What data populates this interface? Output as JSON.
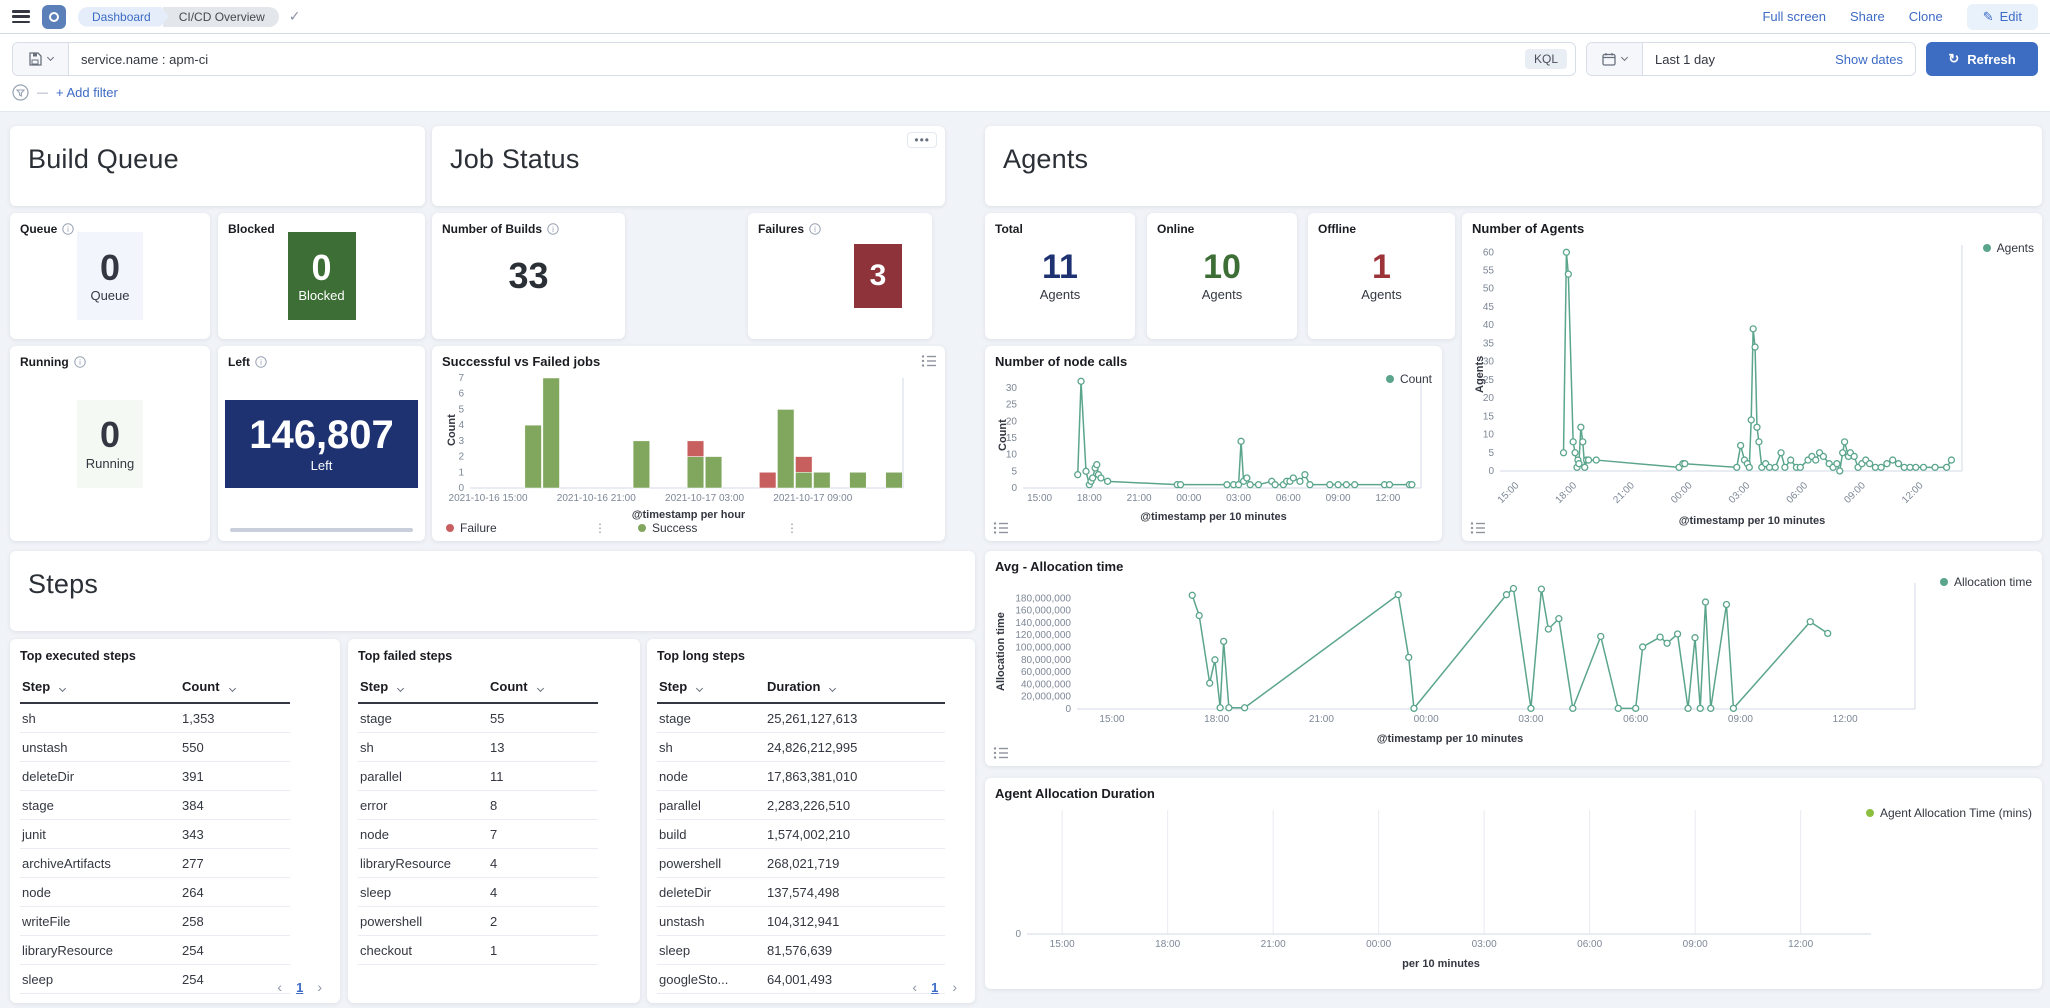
{
  "header": {
    "breadcrumbs": [
      {
        "label": "Dashboard"
      },
      {
        "label": "CI/CD Overview"
      }
    ],
    "actions": {
      "full_screen": "Full screen",
      "share": "Share",
      "clone": "Clone",
      "edit": "Edit"
    }
  },
  "query_bar": {
    "query": "service.name : apm-ci",
    "language_badge": "KQL",
    "date_value": "Last 1 day",
    "show_dates_label": "Show dates",
    "refresh_label": "Refresh"
  },
  "filter_bar": {
    "add_filter_label": "+ Add filter"
  },
  "build_queue": {
    "title": "Build Queue",
    "queue": {
      "label": "Queue",
      "value": "0",
      "sub": "Queue",
      "box_bg": "#F2F5FB",
      "text": "#343741"
    },
    "blocked": {
      "label": "Blocked",
      "value": "0",
      "sub": "Blocked",
      "box_bg": "#3C6E35",
      "text": "#FFFFFF"
    },
    "running": {
      "label": "Running",
      "value": "0",
      "sub": "Running",
      "box_bg": "#F5F9F3",
      "text": "#343741"
    },
    "left": {
      "label": "Left",
      "value": "146,807",
      "sub": "Left",
      "box_bg": "#1E3272",
      "text": "#FFFFFF"
    }
  },
  "job_status": {
    "title": "Job Status",
    "builds": {
      "label": "Number of Builds",
      "value": "33"
    },
    "failures": {
      "label": "Failures",
      "value": "3",
      "box_bg": "#8E333A",
      "text": "#FFFFFF"
    }
  },
  "agents": {
    "title": "Agents",
    "total": {
      "label": "Total",
      "value": "11",
      "sub": "Agents",
      "color": "#1E3272"
    },
    "online": {
      "label": "Online",
      "value": "10",
      "sub": "Agents",
      "color": "#3C6E35"
    },
    "offline": {
      "label": "Offline",
      "value": "1",
      "sub": "Agents",
      "color": "#9B3339"
    }
  },
  "steps": {
    "title": "Steps",
    "pagination": {
      "prev": "‹",
      "page": "1",
      "next": "›"
    },
    "tables": [
      {
        "title": "Top executed steps",
        "columns": [
          "Step",
          "Count"
        ],
        "rows": [
          [
            "sh",
            "1,353"
          ],
          [
            "unstash",
            "550"
          ],
          [
            "deleteDir",
            "391"
          ],
          [
            "stage",
            "384"
          ],
          [
            "junit",
            "343"
          ],
          [
            "archiveArtifacts",
            "277"
          ],
          [
            "node",
            "264"
          ],
          [
            "writeFile",
            "258"
          ],
          [
            "libraryResource",
            "254"
          ],
          [
            "sleep",
            "254"
          ]
        ],
        "pagination": true
      },
      {
        "title": "Top failed steps",
        "columns": [
          "Step",
          "Count"
        ],
        "rows": [
          [
            "stage",
            "55"
          ],
          [
            "sh",
            "13"
          ],
          [
            "parallel",
            "11"
          ],
          [
            "error",
            "8"
          ],
          [
            "node",
            "7"
          ],
          [
            "libraryResource",
            "4"
          ],
          [
            "sleep",
            "4"
          ],
          [
            "powershell",
            "2"
          ],
          [
            "checkout",
            "1"
          ]
        ],
        "pagination": false
      },
      {
        "title": "Top long steps",
        "columns": [
          "Step",
          "Duration"
        ],
        "rows": [
          [
            "stage",
            "25,261,127,613"
          ],
          [
            "sh",
            "24,826,212,995"
          ],
          [
            "node",
            "17,863,381,010"
          ],
          [
            "parallel",
            "2,283,226,510"
          ],
          [
            "build",
            "1,574,002,210"
          ],
          [
            "powershell",
            "268,021,719"
          ],
          [
            "deleteDir",
            "137,574,498"
          ],
          [
            "unstash",
            "104,312,941"
          ],
          [
            "sleep",
            "81,576,639"
          ],
          [
            "googleSto...",
            "64,001,493"
          ]
        ],
        "pagination": true
      }
    ]
  },
  "chart_data": [
    {
      "id": "jobs",
      "type": "bar",
      "title": "Successful vs Failed jobs",
      "ylabel": "Count",
      "xlabel": "@timestamp per hour",
      "ylim": [
        0,
        7
      ],
      "yticks": [
        0,
        1,
        2,
        3,
        4,
        5,
        6,
        7
      ],
      "xlim": [
        0,
        24
      ],
      "xticks": [
        {
          "h": 1,
          "label": "2021-10-16 15:00"
        },
        {
          "h": 7,
          "label": "2021-10-16 21:00"
        },
        {
          "h": 13,
          "label": "2021-10-17 03:00"
        },
        {
          "h": 19,
          "label": "2021-10-17 09:00"
        }
      ],
      "series": [
        {
          "name": "Failure",
          "color": "#C75F5E"
        },
        {
          "name": "Success",
          "color": "#81A65D"
        }
      ],
      "bars": [
        {
          "h": 3,
          "success": 4,
          "failure": 0
        },
        {
          "h": 4,
          "success": 7,
          "failure": 0
        },
        {
          "h": 9,
          "success": 3,
          "failure": 0
        },
        {
          "h": 12,
          "success": 2,
          "failure": 1
        },
        {
          "h": 13,
          "success": 2,
          "failure": 0
        },
        {
          "h": 16,
          "success": 0,
          "failure": 1
        },
        {
          "h": 17,
          "success": 5,
          "failure": 0
        },
        {
          "h": 18,
          "success": 1,
          "failure": 1
        },
        {
          "h": 19,
          "success": 1,
          "failure": 0
        },
        {
          "h": 21,
          "success": 1,
          "failure": 0
        },
        {
          "h": 23,
          "success": 1,
          "failure": 0
        }
      ],
      "legend_position": "bottom",
      "grid": false
    },
    {
      "id": "nodecalls",
      "type": "line",
      "title": "Number of node calls",
      "ylabel": "Count",
      "xlabel": "@timestamp per 10 minutes",
      "legend": "Count",
      "color": "#5BA58C",
      "ylim": [
        0,
        33
      ],
      "yticks": [
        0,
        5,
        10,
        15,
        20,
        25,
        30
      ],
      "xlim": [
        0,
        24
      ],
      "xticks": [
        {
          "h": 1,
          "label": "15:00"
        },
        {
          "h": 4,
          "label": "18:00"
        },
        {
          "h": 7,
          "label": "21:00"
        },
        {
          "h": 10,
          "label": "00:00"
        },
        {
          "h": 13,
          "label": "03:00"
        },
        {
          "h": 16,
          "label": "06:00"
        },
        {
          "h": 19,
          "label": "09:00"
        },
        {
          "h": 22,
          "label": "12:00"
        }
      ],
      "points": [
        [
          3.3,
          4
        ],
        [
          3.5,
          32
        ],
        [
          3.8,
          5
        ],
        [
          4.0,
          1
        ],
        [
          4.1,
          2
        ],
        [
          4.2,
          3
        ],
        [
          4.35,
          6
        ],
        [
          4.45,
          7
        ],
        [
          4.55,
          4
        ],
        [
          4.7,
          3
        ],
        [
          5.1,
          2
        ],
        [
          9.3,
          1
        ],
        [
          9.5,
          1
        ],
        [
          12.3,
          1
        ],
        [
          12.7,
          1
        ],
        [
          13.0,
          1
        ],
        [
          13.15,
          14
        ],
        [
          13.3,
          2
        ],
        [
          13.5,
          3
        ],
        [
          13.7,
          1
        ],
        [
          14.2,
          1
        ],
        [
          15.0,
          2
        ],
        [
          15.2,
          1
        ],
        [
          15.7,
          1
        ],
        [
          15.9,
          2
        ],
        [
          16.1,
          2
        ],
        [
          16.3,
          3
        ],
        [
          16.7,
          2
        ],
        [
          17.0,
          4
        ],
        [
          17.3,
          1
        ],
        [
          18.5,
          1
        ],
        [
          19.0,
          1
        ],
        [
          19.5,
          1
        ],
        [
          20.0,
          1
        ],
        [
          21.8,
          1
        ],
        [
          22.1,
          1
        ],
        [
          23.3,
          1
        ],
        [
          23.45,
          1
        ]
      ],
      "legend_position": "top-right",
      "grid": false
    },
    {
      "id": "agents",
      "type": "line",
      "title": "Number of Agents",
      "ylabel": "Agents",
      "xlabel": "@timestamp per 10 minutes",
      "legend": "Agents",
      "color": "#5BA58C",
      "ylim": [
        0,
        62
      ],
      "yticks": [
        0,
        5,
        10,
        15,
        20,
        25,
        30,
        35,
        40,
        45,
        50,
        55,
        60
      ],
      "xlim": [
        0,
        24
      ],
      "rotate_x_labels": true,
      "xticks": [
        {
          "h": 1,
          "label": "15:00"
        },
        {
          "h": 4,
          "label": "18:00"
        },
        {
          "h": 7,
          "label": "21:00"
        },
        {
          "h": 10,
          "label": "00:00"
        },
        {
          "h": 13,
          "label": "03:00"
        },
        {
          "h": 16,
          "label": "06:00"
        },
        {
          "h": 19,
          "label": "09:00"
        },
        {
          "h": 22,
          "label": "12:00"
        }
      ],
      "points": [
        [
          3.3,
          5
        ],
        [
          3.45,
          60
        ],
        [
          3.55,
          54
        ],
        [
          3.8,
          8
        ],
        [
          3.9,
          5
        ],
        [
          4.0,
          1
        ],
        [
          4.05,
          3
        ],
        [
          4.1,
          2
        ],
        [
          4.2,
          12
        ],
        [
          4.3,
          8
        ],
        [
          4.4,
          1
        ],
        [
          4.5,
          3
        ],
        [
          4.6,
          3
        ],
        [
          5.0,
          3
        ],
        [
          9.3,
          1
        ],
        [
          9.5,
          2
        ],
        [
          9.6,
          2
        ],
        [
          12.3,
          1
        ],
        [
          12.5,
          7
        ],
        [
          12.7,
          3
        ],
        [
          12.85,
          2
        ],
        [
          12.95,
          1
        ],
        [
          13.05,
          14
        ],
        [
          13.15,
          39
        ],
        [
          13.25,
          34
        ],
        [
          13.35,
          12
        ],
        [
          13.45,
          8
        ],
        [
          13.6,
          1
        ],
        [
          13.8,
          2
        ],
        [
          14.0,
          1
        ],
        [
          14.3,
          1
        ],
        [
          14.6,
          5
        ],
        [
          14.8,
          1
        ],
        [
          15.1,
          3
        ],
        [
          15.4,
          1
        ],
        [
          15.6,
          1
        ],
        [
          16.0,
          3
        ],
        [
          16.2,
          4
        ],
        [
          16.4,
          3
        ],
        [
          16.6,
          5
        ],
        [
          16.8,
          4
        ],
        [
          17.1,
          2
        ],
        [
          17.3,
          1
        ],
        [
          17.5,
          2
        ],
        [
          17.65,
          0
        ],
        [
          17.8,
          5
        ],
        [
          17.9,
          8
        ],
        [
          18.1,
          4
        ],
        [
          18.2,
          5
        ],
        [
          18.4,
          4
        ],
        [
          18.6,
          1
        ],
        [
          18.8,
          2
        ],
        [
          19.0,
          3
        ],
        [
          19.2,
          2
        ],
        [
          19.5,
          1
        ],
        [
          19.8,
          1
        ],
        [
          20.1,
          2
        ],
        [
          20.4,
          3
        ],
        [
          20.7,
          2
        ],
        [
          21.0,
          1
        ],
        [
          21.3,
          1
        ],
        [
          21.6,
          1
        ],
        [
          22.0,
          1
        ],
        [
          22.6,
          1
        ],
        [
          23.2,
          1
        ],
        [
          23.45,
          3
        ]
      ],
      "legend_position": "top-right",
      "grid": false
    },
    {
      "id": "alloc",
      "type": "line",
      "title": "Avg - Allocation time",
      "ylabel": "Allocation time",
      "xlabel": "@timestamp per 10 minutes",
      "legend": "Allocation time",
      "color": "#5BA58C",
      "ylim": [
        0,
        205000000
      ],
      "comma_yticks": true,
      "yticks": [
        0,
        20000000,
        40000000,
        60000000,
        80000000,
        100000000,
        120000000,
        140000000,
        160000000,
        180000000
      ],
      "xlim": [
        0,
        24
      ],
      "xticks": [
        {
          "h": 1,
          "label": "15:00"
        },
        {
          "h": 4,
          "label": "18:00"
        },
        {
          "h": 7,
          "label": "21:00"
        },
        {
          "h": 10,
          "label": "00:00"
        },
        {
          "h": 13,
          "label": "03:00"
        },
        {
          "h": 16,
          "label": "06:00"
        },
        {
          "h": 19,
          "label": "09:00"
        },
        {
          "h": 22,
          "label": "12:00"
        }
      ],
      "points": [
        [
          3.3,
          185000000
        ],
        [
          3.5,
          152000000
        ],
        [
          3.8,
          42000000
        ],
        [
          3.95,
          80000000
        ],
        [
          4.1,
          2000000
        ],
        [
          4.2,
          110000000
        ],
        [
          4.35,
          2000000
        ],
        [
          4.8,
          2000000
        ],
        [
          9.2,
          186000000
        ],
        [
          9.5,
          84000000
        ],
        [
          9.65,
          1000000
        ],
        [
          12.3,
          186000000
        ],
        [
          12.5,
          196000000
        ],
        [
          13.0,
          1000000
        ],
        [
          13.3,
          195000000
        ],
        [
          13.5,
          130000000
        ],
        [
          13.8,
          147000000
        ],
        [
          14.2,
          1000000
        ],
        [
          15.0,
          118000000
        ],
        [
          15.5,
          1000000
        ],
        [
          16.0,
          1000000
        ],
        [
          16.2,
          101000000
        ],
        [
          16.7,
          117000000
        ],
        [
          16.9,
          107000000
        ],
        [
          17.2,
          122000000
        ],
        [
          17.5,
          1000000
        ],
        [
          17.7,
          116000000
        ],
        [
          17.85,
          1000000
        ],
        [
          18.0,
          174000000
        ],
        [
          18.15,
          1000000
        ],
        [
          18.6,
          170000000
        ],
        [
          18.8,
          1000000
        ],
        [
          21.0,
          142000000
        ],
        [
          21.5,
          123000000
        ]
      ],
      "legend_position": "top-right",
      "grid": false
    },
    {
      "id": "duration",
      "type": "line",
      "title": "Agent Allocation Duration",
      "ylabel": "",
      "xlabel": "per 10 minutes",
      "legend": "Agent Allocation Time (mins)",
      "color": "#8CBF3F",
      "ylim": [
        0,
        1
      ],
      "yticks": [
        0
      ],
      "xlim": [
        0,
        24
      ],
      "vgrid": true,
      "xticks": [
        {
          "h": 1,
          "label": "15:00"
        },
        {
          "h": 4,
          "label": "18:00"
        },
        {
          "h": 7,
          "label": "21:00"
        },
        {
          "h": 10,
          "label": "00:00"
        },
        {
          "h": 13,
          "label": "03:00"
        },
        {
          "h": 16,
          "label": "06:00"
        },
        {
          "h": 19,
          "label": "09:00"
        },
        {
          "h": 22,
          "label": "12:00"
        }
      ],
      "points": [],
      "legend_position": "top-right",
      "grid": true
    }
  ]
}
